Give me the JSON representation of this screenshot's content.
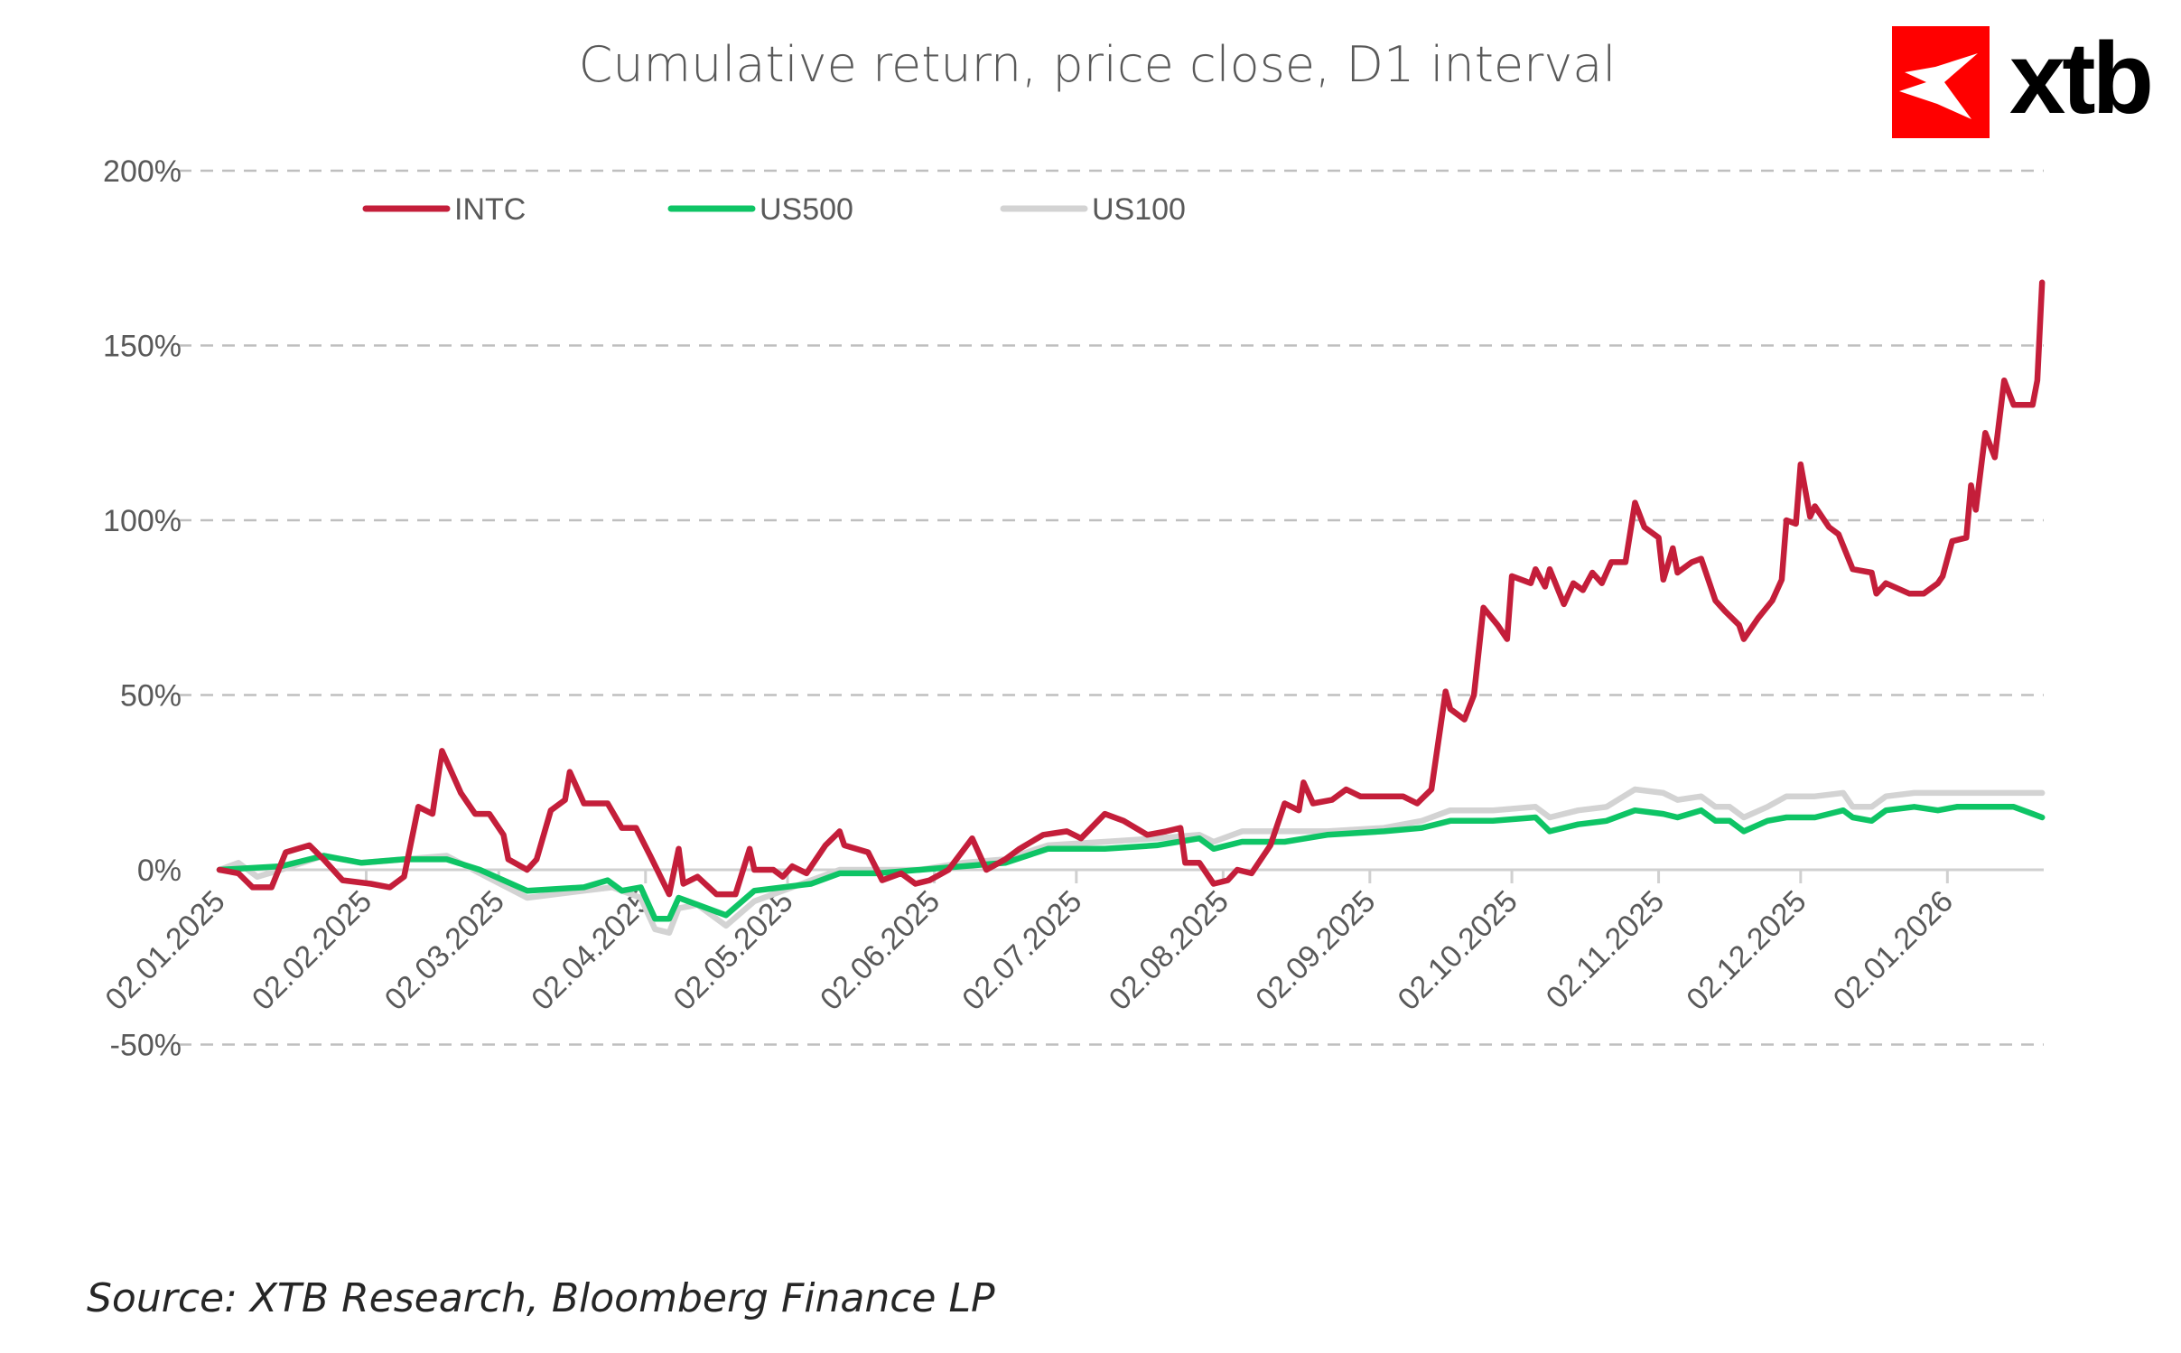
{
  "chart_data": {
    "type": "line",
    "title": "Cumulative return, price close, D1 interval",
    "xlabel": "",
    "ylabel": "",
    "ylim": [
      -50,
      200
    ],
    "y_ticks": [
      -50,
      0,
      50,
      100,
      150,
      200
    ],
    "y_tick_labels": [
      "-50%",
      "0%",
      "50%",
      "100%",
      "150%",
      "200%"
    ],
    "x_range": [
      "2025-01-02",
      "2026-01-22"
    ],
    "x_ticks": [
      "2025-01-02",
      "2025-02-02",
      "2025-03-02",
      "2025-04-02",
      "2025-05-02",
      "2025-06-02",
      "2025-07-02",
      "2025-08-02",
      "2025-09-02",
      "2025-10-02",
      "2025-11-02",
      "2025-12-02",
      "2026-01-02"
    ],
    "x_tick_labels": [
      "02.01.2025",
      "02.02.2025",
      "02.03.2025",
      "02.04.2025",
      "02.05.2025",
      "02.06.2025",
      "02.07.2025",
      "02.08.2025",
      "02.09.2025",
      "02.10.2025",
      "02.11.2025",
      "02.12.2025",
      "02.01.2026"
    ],
    "grid": "horizontal dashed",
    "legend": "top-left",
    "series": [
      {
        "name": "INTC",
        "color": "#c41e3a",
        "x": [
          "2025-01-02",
          "2025-01-06",
          "2025-01-09",
          "2025-01-13",
          "2025-01-16",
          "2025-01-21",
          "2025-01-24",
          "2025-01-28",
          "2025-02-03",
          "2025-02-07",
          "2025-02-10",
          "2025-02-13",
          "2025-02-16",
          "2025-02-18",
          "2025-02-20",
          "2025-02-22",
          "2025-02-25",
          "2025-02-28",
          "2025-03-03",
          "2025-03-04",
          "2025-03-08",
          "2025-03-10",
          "2025-03-13",
          "2025-03-16",
          "2025-03-17",
          "2025-03-20",
          "2025-03-25",
          "2025-03-28",
          "2025-03-31",
          "2025-04-03",
          "2025-04-07",
          "2025-04-09",
          "2025-04-10",
          "2025-04-13",
          "2025-04-17",
          "2025-04-21",
          "2025-04-24",
          "2025-04-25",
          "2025-04-29",
          "2025-05-01",
          "2025-05-03",
          "2025-05-06",
          "2025-05-10",
          "2025-05-13",
          "2025-05-14",
          "2025-05-19",
          "2025-05-22",
          "2025-05-26",
          "2025-05-29",
          "2025-06-01",
          "2025-06-05",
          "2025-06-10",
          "2025-06-13",
          "2025-06-17",
          "2025-06-20",
          "2025-06-25",
          "2025-06-30",
          "2025-07-03",
          "2025-07-08",
          "2025-07-12",
          "2025-07-17",
          "2025-07-21",
          "2025-07-24",
          "2025-07-25",
          "2025-07-28",
          "2025-07-31",
          "2025-08-03",
          "2025-08-05",
          "2025-08-08",
          "2025-08-12",
          "2025-08-15",
          "2025-08-18",
          "2025-08-19",
          "2025-08-21",
          "2025-08-25",
          "2025-08-28",
          "2025-08-31",
          "2025-09-05",
          "2025-09-09",
          "2025-09-12",
          "2025-09-15",
          "2025-09-18",
          "2025-09-19",
          "2025-09-22",
          "2025-09-24",
          "2025-09-26",
          "2025-09-29",
          "2025-10-01",
          "2025-10-02",
          "2025-10-06",
          "2025-10-07",
          "2025-10-09",
          "2025-10-10",
          "2025-10-13",
          "2025-10-15",
          "2025-10-17",
          "2025-10-19",
          "2025-10-21",
          "2025-10-23",
          "2025-10-26",
          "2025-10-28",
          "2025-10-30",
          "2025-11-02",
          "2025-11-03",
          "2025-11-05",
          "2025-11-06",
          "2025-11-09",
          "2025-11-11",
          "2025-11-14",
          "2025-11-16",
          "2025-11-19",
          "2025-11-20",
          "2025-11-23",
          "2025-11-26",
          "2025-11-28",
          "2025-11-29",
          "2025-12-01",
          "2025-12-02",
          "2025-12-04",
          "2025-12-05",
          "2025-12-08",
          "2025-12-10",
          "2025-12-13",
          "2025-12-17",
          "2025-12-18",
          "2025-12-20",
          "2025-12-25",
          "2025-12-28",
          "2025-12-31",
          "2026-01-01",
          "2026-01-03",
          "2026-01-06",
          "2026-01-07",
          "2026-01-08",
          "2026-01-10",
          "2026-01-12",
          "2026-01-14",
          "2026-01-16",
          "2026-01-20",
          "2026-01-21",
          "2026-01-22"
        ],
        "values": [
          0,
          -1,
          -5,
          -5,
          5,
          7,
          3,
          -3,
          -4,
          -5,
          -2,
          18,
          16,
          34,
          28,
          22,
          16,
          16,
          10,
          3,
          0,
          3,
          17,
          20,
          28,
          19,
          19,
          12,
          12,
          4,
          -7,
          6,
          -4,
          -2,
          -7,
          -7,
          6,
          0,
          0,
          -2,
          1,
          -1,
          7,
          11,
          7,
          5,
          -3,
          -1,
          -4,
          -3,
          0,
          9,
          0,
          3,
          6,
          10,
          11,
          9,
          16,
          14,
          10,
          11,
          12,
          2,
          2,
          -4,
          -3,
          0,
          -1,
          7,
          19,
          17,
          25,
          19,
          20,
          23,
          21,
          21,
          21,
          19,
          23,
          51,
          46,
          43,
          50,
          75,
          70,
          66,
          84,
          82,
          86,
          81,
          86,
          76,
          82,
          80,
          85,
          82,
          88,
          88,
          105,
          98,
          95,
          83,
          92,
          85,
          88,
          89,
          77,
          74,
          70,
          66,
          72,
          77,
          83,
          100,
          99,
          116,
          101,
          104,
          98,
          96,
          86,
          85,
          79,
          82,
          79,
          79,
          82,
          84,
          94,
          95,
          110,
          103,
          125,
          118,
          140,
          133,
          133,
          140,
          168
        ]
      },
      {
        "name": "US500",
        "color": "#0ec465",
        "x": [
          "2025-01-02",
          "2025-01-15",
          "2025-01-24",
          "2025-02-01",
          "2025-02-10",
          "2025-02-19",
          "2025-02-26",
          "2025-03-08",
          "2025-03-20",
          "2025-03-25",
          "2025-03-28",
          "2025-04-01",
          "2025-04-04",
          "2025-04-07",
          "2025-04-09",
          "2025-04-13",
          "2025-04-19",
          "2025-04-25",
          "2025-05-01",
          "2025-05-07",
          "2025-05-13",
          "2025-05-21",
          "2025-05-30",
          "2025-06-08",
          "2025-06-17",
          "2025-06-26",
          "2025-07-08",
          "2025-07-19",
          "2025-07-28",
          "2025-07-31",
          "2025-08-06",
          "2025-08-15",
          "2025-08-24",
          "2025-09-05",
          "2025-09-13",
          "2025-09-19",
          "2025-09-28",
          "2025-10-07",
          "2025-10-10",
          "2025-10-16",
          "2025-10-22",
          "2025-10-28",
          "2025-11-03",
          "2025-11-06",
          "2025-11-11",
          "2025-11-14",
          "2025-11-17",
          "2025-11-20",
          "2025-11-25",
          "2025-11-29",
          "2025-12-05",
          "2025-12-11",
          "2025-12-13",
          "2025-12-17",
          "2025-12-20",
          "2025-12-26",
          "2025-12-31",
          "2026-01-04",
          "2026-01-10",
          "2026-01-16",
          "2026-01-20",
          "2026-01-22"
        ],
        "values": [
          0,
          1,
          4,
          2,
          3,
          3,
          0,
          -6,
          -5,
          -3,
          -6,
          -5,
          -14,
          -14,
          -8,
          -10,
          -13,
          -6,
          -5,
          -4,
          -1,
          -1,
          0,
          1,
          2,
          6,
          6,
          7,
          9,
          6,
          8,
          8,
          10,
          11,
          12,
          14,
          14,
          15,
          11,
          13,
          14,
          17,
          16,
          15,
          17,
          14,
          14,
          11,
          14,
          15,
          15,
          17,
          15,
          14,
          17,
          18,
          17,
          18,
          18,
          18,
          16,
          15
        ]
      },
      {
        "name": "US100",
        "color": "#d3d3d3",
        "x": [
          "2025-01-02",
          "2025-01-06",
          "2025-01-10",
          "2025-01-15",
          "2025-01-24",
          "2025-02-01",
          "2025-02-10",
          "2025-02-19",
          "2025-02-26",
          "2025-03-08",
          "2025-03-20",
          "2025-03-26",
          "2025-04-01",
          "2025-04-04",
          "2025-04-07",
          "2025-04-09",
          "2025-04-13",
          "2025-04-19",
          "2025-04-25",
          "2025-05-01",
          "2025-05-07",
          "2025-05-13",
          "2025-05-21",
          "2025-05-30",
          "2025-06-08",
          "2025-06-17",
          "2025-06-26",
          "2025-07-08",
          "2025-07-19",
          "2025-07-28",
          "2025-07-31",
          "2025-08-06",
          "2025-08-15",
          "2025-08-24",
          "2025-09-05",
          "2025-09-13",
          "2025-09-19",
          "2025-09-28",
          "2025-10-07",
          "2025-10-10",
          "2025-10-16",
          "2025-10-22",
          "2025-10-28",
          "2025-11-03",
          "2025-11-06",
          "2025-11-11",
          "2025-11-14",
          "2025-11-17",
          "2025-11-20",
          "2025-11-25",
          "2025-11-29",
          "2025-12-05",
          "2025-12-11",
          "2025-12-13",
          "2025-12-17",
          "2025-12-20",
          "2025-12-26",
          "2026-01-22"
        ],
        "values": [
          0,
          2,
          -2,
          0,
          4,
          2,
          3,
          4,
          -1,
          -8,
          -6,
          -5,
          -8,
          -17,
          -18,
          -11,
          -10,
          -16,
          -9,
          -6,
          -3,
          0,
          0,
          0,
          2,
          3,
          7,
          8,
          9,
          10,
          8,
          11,
          11,
          11,
          12,
          14,
          17,
          17,
          18,
          15,
          17,
          18,
          23,
          22,
          20,
          21,
          18,
          18,
          15,
          18,
          21,
          21,
          22,
          18,
          18,
          21,
          22,
          22
        ]
      }
    ],
    "source": "Source: XTB Research, Bloomberg Finance LP"
  },
  "logo": {
    "text": "xtb",
    "color": "#ff0000"
  }
}
